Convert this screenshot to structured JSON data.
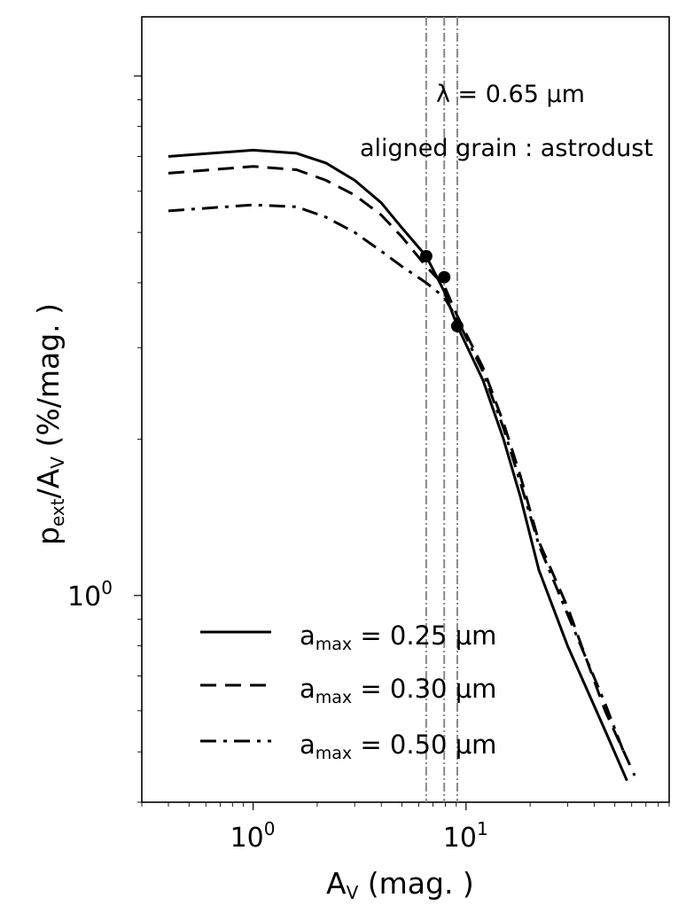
{
  "chart_data": {
    "type": "line",
    "xlabel": "A_V (mag.)",
    "ylabel": "p_ext/A_V (%/mag.)",
    "xlabel_parts": {
      "main": "A",
      "sub": "V",
      "rest": " (mag. )"
    },
    "ylabel_parts": {
      "p": "p",
      "psub": "ext",
      "mid": "/A",
      "asub": "V",
      "rest": " (%/mag. )"
    },
    "x_scale": "log",
    "y_scale": "log",
    "xlim": [
      0.3,
      90
    ],
    "ylim": [
      0.4,
      13
    ],
    "x_ticks": [
      {
        "value": 1,
        "base": "10",
        "exp": "0"
      },
      {
        "value": 10,
        "base": "10",
        "exp": "1"
      }
    ],
    "y_ticks": [
      {
        "value": 1,
        "base": "10",
        "exp": "0"
      }
    ],
    "annotations": {
      "wavelength": "λ = 0.65 μm",
      "grain": "aligned grain : astrodust"
    },
    "vertical_lines_x": [
      6.5,
      7.9,
      9.1
    ],
    "markers": [
      {
        "x": 6.5,
        "y": 4.5
      },
      {
        "x": 7.9,
        "y": 4.1
      },
      {
        "x": 9.1,
        "y": 3.3
      }
    ],
    "legend": {
      "position": "lower-left",
      "entries": [
        {
          "prefix": "a",
          "sub": "max",
          "text": " = 0.25 μm",
          "style": "solid"
        },
        {
          "prefix": "a",
          "sub": "max",
          "text": " = 0.30 μm",
          "style": "dashed"
        },
        {
          "prefix": "a",
          "sub": "max",
          "text": " = 0.50 μm",
          "style": "dashdot"
        }
      ]
    },
    "series": [
      {
        "style": "solid",
        "points": [
          [
            0.4,
            7.0
          ],
          [
            1.0,
            7.2
          ],
          [
            1.6,
            7.1
          ],
          [
            2.2,
            6.8
          ],
          [
            3.0,
            6.3
          ],
          [
            4.0,
            5.7
          ],
          [
            5.0,
            5.1
          ],
          [
            6.5,
            4.5
          ],
          [
            7.9,
            3.85
          ],
          [
            9.1,
            3.3
          ],
          [
            12,
            2.6
          ],
          [
            15,
            2.0
          ],
          [
            18,
            1.55
          ],
          [
            22,
            1.12
          ],
          [
            30,
            0.8
          ],
          [
            45,
            0.55
          ],
          [
            57,
            0.44
          ]
        ]
      },
      {
        "style": "dashed",
        "points": [
          [
            0.4,
            6.5
          ],
          [
            1.0,
            6.7
          ],
          [
            1.6,
            6.6
          ],
          [
            2.2,
            6.3
          ],
          [
            3.0,
            5.9
          ],
          [
            4.0,
            5.4
          ],
          [
            5.0,
            4.9
          ],
          [
            6.5,
            4.3
          ],
          [
            7.9,
            3.95
          ],
          [
            9.1,
            3.45
          ],
          [
            12,
            2.75
          ],
          [
            15,
            2.15
          ],
          [
            18,
            1.7
          ],
          [
            22,
            1.27
          ],
          [
            30,
            0.95
          ],
          [
            45,
            0.6
          ],
          [
            62,
            0.45
          ]
        ]
      },
      {
        "style": "dashdot",
        "points": [
          [
            0.4,
            5.5
          ],
          [
            1.0,
            5.65
          ],
          [
            1.6,
            5.6
          ],
          [
            2.2,
            5.35
          ],
          [
            3.0,
            5.0
          ],
          [
            4.0,
            4.6
          ],
          [
            5.0,
            4.3
          ],
          [
            6.5,
            4.0
          ],
          [
            7.9,
            3.75
          ],
          [
            9.1,
            3.4
          ],
          [
            12,
            2.7
          ],
          [
            15,
            2.1
          ],
          [
            18,
            1.65
          ],
          [
            22,
            1.25
          ],
          [
            30,
            0.92
          ],
          [
            45,
            0.62
          ],
          [
            55,
            0.5
          ]
        ]
      }
    ]
  }
}
